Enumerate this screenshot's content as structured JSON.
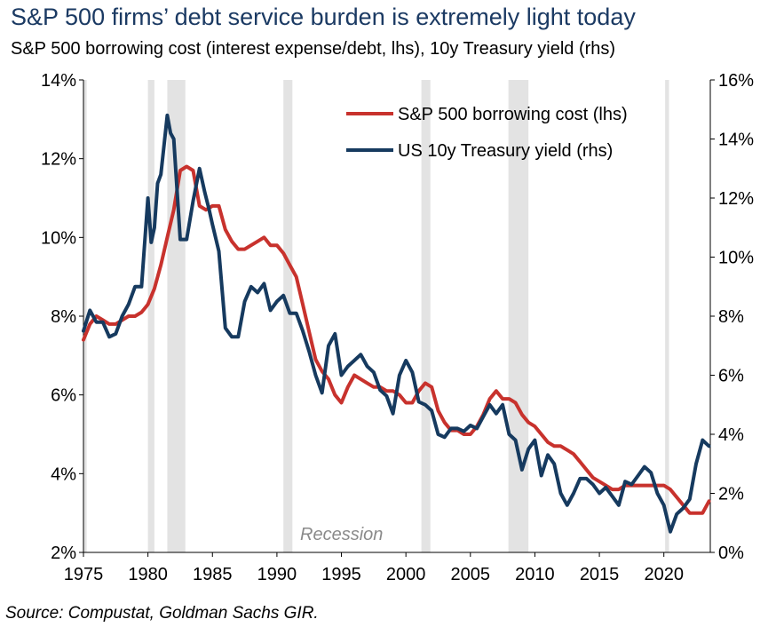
{
  "header": {
    "title": "S&P 500 firms’ debt service burden is extremely light today",
    "subtitle": "S&P 500 borrowing cost (interest expense/debt, lhs), 10y Treasury yield (rhs)"
  },
  "source": "Source: Compustat, Goldman Sachs GIR.",
  "chart_data": {
    "type": "line",
    "x_ticks": [
      1975,
      1980,
      1985,
      1990,
      1995,
      2000,
      2005,
      2010,
      2015,
      2020
    ],
    "xlim": [
      1975,
      2023.6
    ],
    "left_axis": {
      "ylim": [
        2,
        14
      ],
      "ticks": [
        2,
        4,
        6,
        8,
        10,
        12,
        14
      ],
      "tick_suffix": "%"
    },
    "right_axis": {
      "ylim": [
        0,
        16
      ],
      "ticks": [
        0,
        2,
        4,
        6,
        8,
        10,
        12,
        14,
        16
      ],
      "tick_suffix": "%"
    },
    "recessions": [
      [
        1975.0,
        1975.25
      ],
      [
        1980.0,
        1980.5
      ],
      [
        1981.5,
        1982.9
      ],
      [
        1990.5,
        1991.2
      ],
      [
        2001.2,
        2001.9
      ],
      [
        2007.95,
        2009.5
      ],
      [
        2020.1,
        2020.4
      ]
    ],
    "recession_label": "Recession",
    "legend_position": "top-right",
    "colors": {
      "borrowing": "#c8322d",
      "treasury": "#163a5f",
      "recession": "#e3e3e3"
    },
    "series": [
      {
        "name": "S&P 500 borrowing cost (lhs)",
        "axis": "left",
        "color": "#c8322d",
        "x": [
          1975.0,
          1975.5,
          1976.0,
          1976.5,
          1977.0,
          1977.5,
          1978.0,
          1978.5,
          1979.0,
          1979.5,
          1980.0,
          1980.5,
          1981.0,
          1981.5,
          1982.0,
          1982.5,
          1983.0,
          1983.5,
          1984.0,
          1984.5,
          1985.0,
          1985.5,
          1986.0,
          1986.5,
          1987.0,
          1987.5,
          1988.0,
          1988.5,
          1989.0,
          1989.5,
          1990.0,
          1990.5,
          1991.0,
          1991.5,
          1992.0,
          1992.5,
          1993.0,
          1993.5,
          1994.0,
          1994.5,
          1995.0,
          1995.5,
          1996.0,
          1996.5,
          1997.0,
          1997.5,
          1998.0,
          1998.5,
          1999.0,
          1999.5,
          2000.0,
          2000.5,
          2001.0,
          2001.5,
          2002.0,
          2002.5,
          2003.0,
          2003.5,
          2004.0,
          2004.5,
          2005.0,
          2005.5,
          2006.0,
          2006.5,
          2007.0,
          2007.5,
          2008.0,
          2008.5,
          2009.0,
          2009.5,
          2010.0,
          2010.5,
          2011.0,
          2011.5,
          2012.0,
          2012.5,
          2013.0,
          2013.5,
          2014.0,
          2014.5,
          2015.0,
          2015.5,
          2016.0,
          2016.5,
          2017.0,
          2017.5,
          2018.0,
          2018.5,
          2019.0,
          2019.5,
          2020.0,
          2020.5,
          2021.0,
          2021.5,
          2022.0,
          2022.5,
          2023.0,
          2023.5
        ],
        "y": [
          7.4,
          7.8,
          8.0,
          7.9,
          7.8,
          7.8,
          7.9,
          8.0,
          8.0,
          8.1,
          8.3,
          8.7,
          9.3,
          10.0,
          10.7,
          11.7,
          11.8,
          11.7,
          10.8,
          10.7,
          10.8,
          10.8,
          10.2,
          9.9,
          9.7,
          9.7,
          9.8,
          9.9,
          10.0,
          9.8,
          9.8,
          9.6,
          9.3,
          9.0,
          8.3,
          7.6,
          6.9,
          6.6,
          6.4,
          6.0,
          5.8,
          6.2,
          6.5,
          6.4,
          6.3,
          6.2,
          6.2,
          6.1,
          6.1,
          6.0,
          5.8,
          5.8,
          6.1,
          6.3,
          6.2,
          5.6,
          5.3,
          5.1,
          5.1,
          5.0,
          5.0,
          5.2,
          5.5,
          5.9,
          6.1,
          5.9,
          5.9,
          5.8,
          5.5,
          5.3,
          5.2,
          5.0,
          4.8,
          4.7,
          4.7,
          4.6,
          4.5,
          4.3,
          4.1,
          3.9,
          3.8,
          3.7,
          3.6,
          3.6,
          3.7,
          3.7,
          3.7,
          3.7,
          3.7,
          3.7,
          3.7,
          3.6,
          3.4,
          3.2,
          3.0,
          3.0,
          3.0,
          3.3
        ]
      },
      {
        "name": "US 10y Treasury yield (rhs)",
        "axis": "right",
        "color": "#163a5f",
        "x": [
          1975.0,
          1975.5,
          1976.0,
          1976.5,
          1977.0,
          1977.5,
          1978.0,
          1978.5,
          1979.0,
          1979.5,
          1980.0,
          1980.25,
          1980.5,
          1980.75,
          1981.0,
          1981.5,
          1981.75,
          1982.0,
          1982.5,
          1982.75,
          1983.0,
          1983.5,
          1984.0,
          1984.4,
          1984.75,
          1985.0,
          1985.5,
          1986.0,
          1986.5,
          1987.0,
          1987.5,
          1988.0,
          1988.5,
          1989.0,
          1989.5,
          1990.0,
          1990.5,
          1991.0,
          1991.5,
          1992.0,
          1992.5,
          1993.0,
          1993.5,
          1994.0,
          1994.5,
          1995.0,
          1995.5,
          1996.0,
          1996.5,
          1997.0,
          1997.5,
          1998.0,
          1998.5,
          1999.0,
          1999.5,
          2000.0,
          2000.5,
          2001.0,
          2001.5,
          2002.0,
          2002.5,
          2003.0,
          2003.5,
          2004.0,
          2004.5,
          2005.0,
          2005.5,
          2006.0,
          2006.5,
          2007.0,
          2007.5,
          2008.0,
          2008.5,
          2009.0,
          2009.5,
          2010.0,
          2010.5,
          2011.0,
          2011.5,
          2012.0,
          2012.5,
          2013.0,
          2013.5,
          2014.0,
          2014.5,
          2015.0,
          2015.5,
          2016.0,
          2016.5,
          2017.0,
          2017.5,
          2018.0,
          2018.5,
          2019.0,
          2019.5,
          2020.0,
          2020.5,
          2021.0,
          2021.5,
          2022.0,
          2022.5,
          2023.0,
          2023.5
        ],
        "y": [
          7.5,
          8.2,
          7.8,
          7.8,
          7.3,
          7.4,
          8.0,
          8.4,
          9.0,
          9.0,
          12.0,
          10.5,
          11.0,
          12.5,
          12.8,
          14.8,
          14.2,
          14.0,
          10.6,
          10.6,
          10.6,
          11.9,
          13.0,
          12.2,
          11.6,
          11.1,
          10.2,
          7.6,
          7.3,
          7.3,
          8.5,
          9.0,
          8.8,
          9.1,
          8.2,
          8.5,
          8.7,
          8.1,
          8.1,
          7.5,
          6.8,
          6.0,
          5.4,
          7.0,
          7.4,
          6.0,
          6.3,
          6.5,
          6.7,
          6.3,
          6.1,
          5.5,
          5.3,
          4.7,
          6.0,
          6.5,
          6.1,
          5.1,
          5.0,
          4.8,
          4.0,
          3.9,
          4.2,
          4.2,
          4.1,
          4.3,
          4.2,
          4.6,
          5.0,
          4.7,
          5.0,
          4.0,
          3.8,
          2.8,
          3.5,
          3.8,
          2.6,
          3.3,
          3.0,
          2.0,
          1.6,
          2.0,
          2.5,
          2.5,
          2.3,
          2.0,
          2.2,
          1.9,
          1.6,
          2.4,
          2.3,
          2.6,
          2.9,
          2.7,
          2.0,
          1.6,
          0.7,
          1.3,
          1.5,
          1.8,
          3.0,
          3.8,
          3.6
        ]
      }
    ]
  }
}
